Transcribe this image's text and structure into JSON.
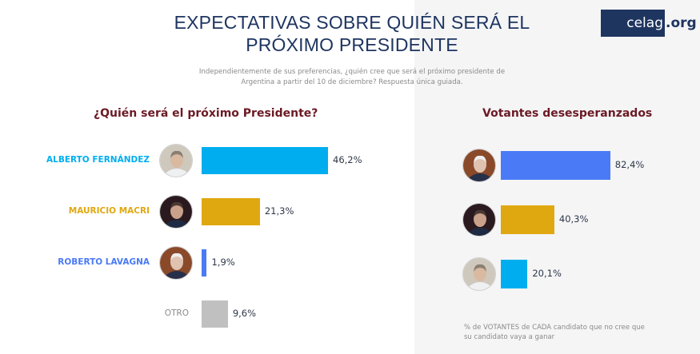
{
  "header": {
    "title_line1": "EXPECTATIVAS SOBRE QUIÉN SERÁ EL",
    "title_line2": "PRÓXIMO PRESIDENTE",
    "subtitle_line1": "Independientemente de sus preferencias, ¿quién cree que será el próximo presidente de",
    "subtitle_line2": "Argentina a partir del 10 de diciembre? Respuesta única guiada.",
    "logo_main": "celag",
    "logo_suffix": ".org"
  },
  "colors": {
    "fernandez": "#00aeef",
    "macri": "#e0a810",
    "lavagna": "#4a7af5",
    "otro": "#c0c0c0",
    "section_title": "#6b1a24",
    "title": "#1e3560"
  },
  "chart_data": [
    {
      "type": "bar",
      "orientation": "horizontal",
      "title": "¿Quién será el próximo Presidente?",
      "categories": [
        "ALBERTO FERNÁNDEZ",
        "MAURICIO MACRI",
        "ROBERTO LAVAGNA",
        "OTRO"
      ],
      "values": [
        46.2,
        21.3,
        1.9,
        9.6
      ],
      "value_labels": [
        "46,2%",
        "21,3%",
        "1,9%",
        "9,6%"
      ],
      "colors": [
        "#00aeef",
        "#e0a810",
        "#4a7af5",
        "#c0c0c0"
      ],
      "avatars": [
        "fernandez-photo",
        "macri-photo",
        "lavagna-photo",
        null
      ],
      "unit": "%",
      "xlim": [
        0,
        100
      ]
    },
    {
      "type": "bar",
      "orientation": "horizontal",
      "title": "Votantes desesperanzados",
      "categories": [
        "ROBERTO LAVAGNA",
        "MAURICIO MACRI",
        "ALBERTO FERNÁNDEZ"
      ],
      "values": [
        82.4,
        40.3,
        20.1
      ],
      "value_labels": [
        "82,4%",
        "40,3%",
        "20,1%"
      ],
      "colors": [
        "#4a7af5",
        "#e0a810",
        "#00aeef"
      ],
      "avatars": [
        "lavagna-photo",
        "macri-photo",
        "fernandez-photo"
      ],
      "unit": "%",
      "xlim": [
        0,
        100
      ],
      "footnote_line1": "% de VOTANTES de CADA candidato que no cree que",
      "footnote_line2": "su candidato vaya a ganar"
    }
  ]
}
